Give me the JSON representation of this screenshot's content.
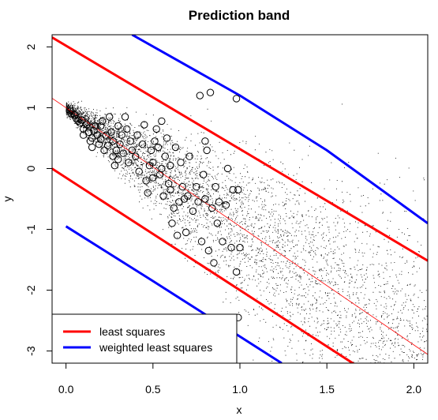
{
  "chart_data": {
    "type": "scatter",
    "title": "Prediction band",
    "xlabel": "x",
    "ylabel": "y",
    "xlim": [
      -0.08,
      2.08
    ],
    "ylim": [
      -3.2,
      2.2
    ],
    "x_ticks": [
      "0.0",
      "0.5",
      "1.0",
      "1.5",
      "2.0"
    ],
    "y_ticks": [
      "-3",
      "-2",
      "-1",
      "0",
      "1",
      "2"
    ],
    "legend_position": "bottom-left",
    "grid": false,
    "colors": {
      "least_squares": "#ff0000",
      "weighted_least_squares": "#0000ff",
      "points": "#000000",
      "fit_line": "#ff0000"
    },
    "fit_line": {
      "intercept": 1.0,
      "slope": -1.95
    },
    "least_squares_band": {
      "upper": {
        "intercept": 2.02,
        "slope": -1.7
      },
      "lower": {
        "intercept": -0.15,
        "slope": -1.85
      }
    },
    "weighted_least_squares_band": {
      "upper": [
        [
          0.38,
          2.2
        ],
        [
          1.0,
          1.2
        ],
        [
          1.5,
          0.3
        ],
        [
          2.08,
          -0.9
        ]
      ],
      "lower": [
        [
          0.0,
          -0.95
        ],
        [
          0.5,
          -1.85
        ],
        [
          1.24,
          -3.2
        ]
      ]
    },
    "sample_points": [
      {
        "x": 0.02,
        "y": 0.95
      },
      {
        "x": 0.03,
        "y": 0.9
      },
      {
        "x": 0.05,
        "y": 0.88
      },
      {
        "x": 0.06,
        "y": 0.82
      },
      {
        "x": 0.07,
        "y": 0.78
      },
      {
        "x": 0.08,
        "y": 0.75
      },
      {
        "x": 0.09,
        "y": 0.8
      },
      {
        "x": 0.1,
        "y": 0.65
      },
      {
        "x": 0.1,
        "y": 0.55
      },
      {
        "x": 0.12,
        "y": 0.72
      },
      {
        "x": 0.13,
        "y": 0.6
      },
      {
        "x": 0.14,
        "y": 0.45
      },
      {
        "x": 0.15,
        "y": 0.5
      },
      {
        "x": 0.15,
        "y": 0.35
      },
      {
        "x": 0.16,
        "y": 0.62
      },
      {
        "x": 0.17,
        "y": 0.7
      },
      {
        "x": 0.18,
        "y": 0.55
      },
      {
        "x": 0.19,
        "y": 0.4
      },
      {
        "x": 0.2,
        "y": 0.7
      },
      {
        "x": 0.2,
        "y": 0.48
      },
      {
        "x": 0.21,
        "y": 0.78
      },
      {
        "x": 0.22,
        "y": 0.3
      },
      {
        "x": 0.23,
        "y": 0.55
      },
      {
        "x": 0.24,
        "y": 0.38
      },
      {
        "x": 0.25,
        "y": 0.85
      },
      {
        "x": 0.26,
        "y": 0.6
      },
      {
        "x": 0.27,
        "y": 0.2
      },
      {
        "x": 0.27,
        "y": 0.45
      },
      {
        "x": 0.28,
        "y": 0.05
      },
      {
        "x": 0.29,
        "y": 0.3
      },
      {
        "x": 0.3,
        "y": 0.15
      },
      {
        "x": 0.3,
        "y": 0.7
      },
      {
        "x": 0.31,
        "y": 0.4
      },
      {
        "x": 0.32,
        "y": 0.55
      },
      {
        "x": 0.33,
        "y": 0.25
      },
      {
        "x": 0.34,
        "y": 0.85
      },
      {
        "x": 0.35,
        "y": 0.65
      },
      {
        "x": 0.36,
        "y": 0.1
      },
      {
        "x": 0.37,
        "y": 0.45
      },
      {
        "x": 0.38,
        "y": 0.3
      },
      {
        "x": 0.4,
        "y": 0.2
      },
      {
        "x": 0.41,
        "y": 0.55
      },
      {
        "x": 0.42,
        "y": -0.05
      },
      {
        "x": 0.44,
        "y": 0.4
      },
      {
        "x": 0.45,
        "y": 0.72
      },
      {
        "x": 0.46,
        "y": -0.2
      },
      {
        "x": 0.47,
        "y": -0.4
      },
      {
        "x": 0.48,
        "y": 0.05
      },
      {
        "x": 0.49,
        "y": 0.3
      },
      {
        "x": 0.5,
        "y": 0.1
      },
      {
        "x": 0.5,
        "y": -0.15
      },
      {
        "x": 0.51,
        "y": 0.45
      },
      {
        "x": 0.52,
        "y": 0.65
      },
      {
        "x": 0.53,
        "y": 0.35
      },
      {
        "x": 0.54,
        "y": -0.1
      },
      {
        "x": 0.55,
        "y": 0.78
      },
      {
        "x": 0.55,
        "y": 0.0
      },
      {
        "x": 0.56,
        "y": -0.45
      },
      {
        "x": 0.57,
        "y": 0.2
      },
      {
        "x": 0.58,
        "y": 0.5
      },
      {
        "x": 0.59,
        "y": -0.25
      },
      {
        "x": 0.6,
        "y": 0.05
      },
      {
        "x": 0.6,
        "y": -0.35
      },
      {
        "x": 0.61,
        "y": -0.9
      },
      {
        "x": 0.62,
        "y": -0.65
      },
      {
        "x": 0.63,
        "y": 0.35
      },
      {
        "x": 0.64,
        "y": -1.1
      },
      {
        "x": 0.65,
        "y": -0.55
      },
      {
        "x": 0.66,
        "y": 0.1
      },
      {
        "x": 0.67,
        "y": -0.3
      },
      {
        "x": 0.68,
        "y": -0.5
      },
      {
        "x": 0.69,
        "y": -1.05
      },
      {
        "x": 0.7,
        "y": -0.45
      },
      {
        "x": 0.71,
        "y": 0.2
      },
      {
        "x": 0.73,
        "y": -0.7
      },
      {
        "x": 0.75,
        "y": -0.3
      },
      {
        "x": 0.76,
        "y": -0.55
      },
      {
        "x": 0.77,
        "y": 1.2
      },
      {
        "x": 0.78,
        "y": -1.2
      },
      {
        "x": 0.79,
        "y": -0.1
      },
      {
        "x": 0.8,
        "y": -0.5
      },
      {
        "x": 0.81,
        "y": 0.3
      },
      {
        "x": 0.82,
        "y": -1.35
      },
      {
        "x": 0.83,
        "y": 1.25
      },
      {
        "x": 0.84,
        "y": -0.65
      },
      {
        "x": 0.85,
        "y": -1.55
      },
      {
        "x": 0.86,
        "y": -0.3
      },
      {
        "x": 0.87,
        "y": -0.9
      },
      {
        "x": 0.88,
        "y": -0.55
      },
      {
        "x": 0.9,
        "y": -1.2
      },
      {
        "x": 0.92,
        "y": -0.6
      },
      {
        "x": 0.93,
        "y": 0.0
      },
      {
        "x": 0.95,
        "y": -1.3
      },
      {
        "x": 0.96,
        "y": -0.35
      },
      {
        "x": 0.98,
        "y": 1.15
      },
      {
        "x": 0.98,
        "y": -1.7
      },
      {
        "x": 0.99,
        "y": -0.35
      },
      {
        "x": 1.0,
        "y": -1.3
      },
      {
        "x": 0.99,
        "y": -2.45
      },
      {
        "x": 0.8,
        "y": 0.45
      }
    ],
    "legend": [
      "least squares",
      "weighted least squares"
    ]
  }
}
